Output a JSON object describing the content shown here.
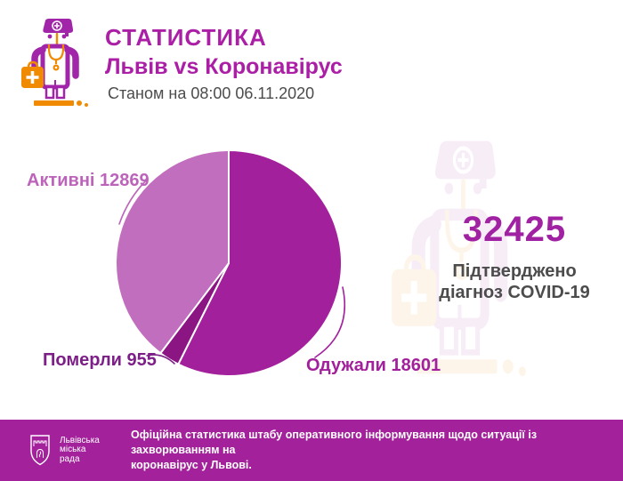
{
  "header": {
    "title": "СТАТИСТИКА",
    "subtitle": "Львів vs Коронавірус",
    "date_line": "Станом на 08:00 06.11.2020"
  },
  "stats": {
    "confirmed_value": "32425",
    "caption_line1": "Підтверджено",
    "caption_line2": "діагноз COVID-19"
  },
  "chart_data": {
    "type": "pie",
    "title": "Львів vs Коронавірус",
    "total": 32425,
    "direction": "clockwise",
    "start_angle_deg": 0,
    "legend_position": "around-pie",
    "slices": [
      {
        "key": "recovered",
        "label": "Одужали",
        "value": 18601,
        "color": "#A3209C",
        "label_color": "#A2209C"
      },
      {
        "key": "died",
        "label": "Померли",
        "value": 955,
        "color": "#8A1583",
        "label_color": "#7C1F87"
      },
      {
        "key": "active",
        "label": "Активні",
        "value": 12869,
        "color": "#C16EBE",
        "label_color": "#BC64BA"
      }
    ]
  },
  "footer": {
    "org_lines": [
      "Львівська",
      "міська",
      "рада"
    ],
    "text_line1": "Офіційна статистика штабу оперативного інформування щодо ситуації із захворюванням на",
    "text_line2": "коронавірус у Львові."
  },
  "colors": {
    "accent_magenta": "#AB1FA6",
    "big_number": "#A021A2",
    "text_dark": "#4C4C4C",
    "footer_bg": "#A3219B",
    "icon_purple": "#A125A8",
    "icon_orange": "#F08A00",
    "background": "#FFFFFF"
  },
  "icons": {
    "doctor": "doctor-with-medical-bag-icon",
    "emblem": "lviv-city-coat-of-arms-icon"
  }
}
